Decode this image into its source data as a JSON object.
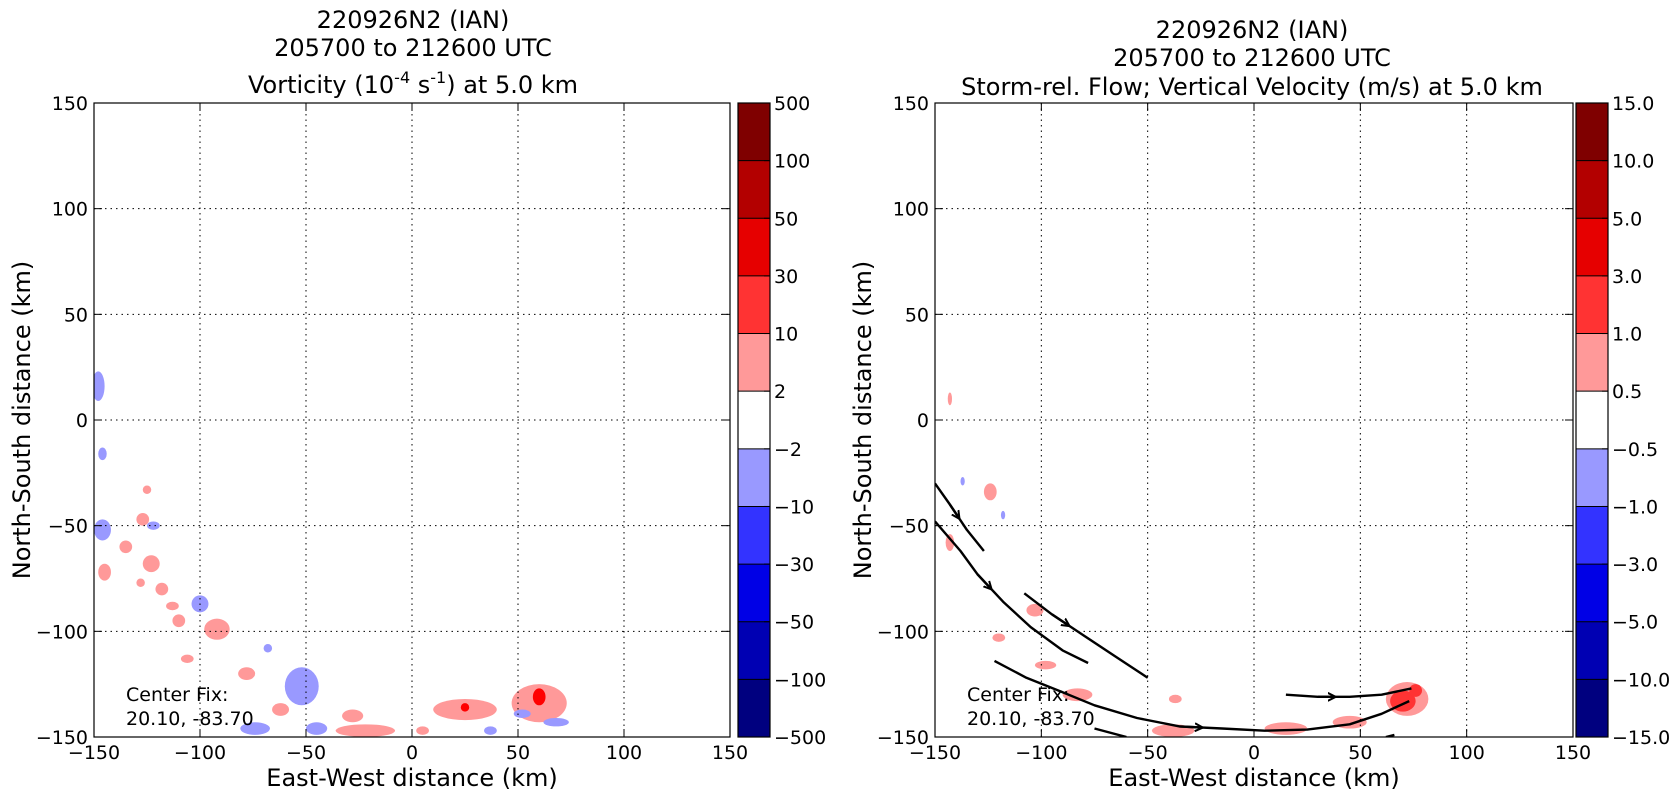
{
  "figure": {
    "panels": [
      {
        "title_lines": [
          "220926N2 (IAN)",
          "205700 to 212600 UTC"
        ],
        "title_main": "Vorticity (10",
        "title_exp": "-4",
        "title_mid": " s",
        "title_exp2": "-1",
        "title_end": ") at 5.0 km",
        "center_fix_label": "Center Fix:",
        "center_fix_value": "20.10, -83.70"
      },
      {
        "title_lines": [
          "220926N2 (IAN)",
          "205700 to 212600 UTC"
        ],
        "title_main": "Storm-rel. Flow; Vertical Velocity (m/s) at 5.0 km",
        "center_fix_label": "Center Fix:",
        "center_fix_value": "20.10, -83.70"
      }
    ]
  },
  "chart_data": [
    {
      "type": "heatmap",
      "title": "220926N2 (IAN) 205700 to 212600 UTC Vorticity (10^-4 s^-1) at 5.0 km",
      "xlabel": "East-West distance (km)",
      "ylabel": "North-South distance (km)",
      "xlim": [
        -150,
        150
      ],
      "ylim": [
        -150,
        150
      ],
      "xticks": [
        -150,
        -100,
        -50,
        0,
        50,
        100,
        150
      ],
      "yticks": [
        -150,
        -100,
        -50,
        0,
        50,
        100,
        150
      ],
      "xtick_labels": [
        "−150",
        "−100",
        "−50",
        "0",
        "50",
        "100",
        "150"
      ],
      "ytick_labels": [
        "−150",
        "−100",
        "−50",
        "0",
        "50",
        "100",
        "150"
      ],
      "grid": true,
      "colorbar": {
        "labels": [
          "500",
          "100",
          "50",
          "30",
          "10",
          "2",
          "−2",
          "−10",
          "−30",
          "−50",
          "−100",
          "−500"
        ],
        "colors": [
          "#7f0000",
          "#b30000",
          "#e60000",
          "#ff3333",
          "#ff9999",
          "#ffffff",
          "#9999ff",
          "#3333ff",
          "#0000e6",
          "#0000b3",
          "#00007f"
        ]
      },
      "patches": [
        {
          "level": "#9999ff",
          "x": -148,
          "y": 16,
          "rx": 3,
          "ry": 7
        },
        {
          "level": "#9999ff",
          "x": -146,
          "y": -16,
          "rx": 2,
          "ry": 3
        },
        {
          "level": "#9999ff",
          "x": -146,
          "y": -52,
          "rx": 4,
          "ry": 5
        },
        {
          "level": "#ff9999",
          "x": -145,
          "y": -72,
          "rx": 3,
          "ry": 4
        },
        {
          "level": "#ff9999",
          "x": -135,
          "y": -60,
          "rx": 3,
          "ry": 3
        },
        {
          "level": "#ff9999",
          "x": -127,
          "y": -47,
          "rx": 3,
          "ry": 3
        },
        {
          "level": "#ff9999",
          "x": -125,
          "y": -33,
          "rx": 2,
          "ry": 2
        },
        {
          "level": "#9999ff",
          "x": -122,
          "y": -50,
          "rx": 3,
          "ry": 2
        },
        {
          "level": "#ff9999",
          "x": -123,
          "y": -68,
          "rx": 4,
          "ry": 4
        },
        {
          "level": "#ff9999",
          "x": -118,
          "y": -80,
          "rx": 3,
          "ry": 3
        },
        {
          "level": "#ff9999",
          "x": -128,
          "y": -77,
          "rx": 2,
          "ry": 2
        },
        {
          "level": "#ff9999",
          "x": -113,
          "y": -88,
          "rx": 3,
          "ry": 2
        },
        {
          "level": "#ff9999",
          "x": -110,
          "y": -95,
          "rx": 3,
          "ry": 3
        },
        {
          "level": "#9999ff",
          "x": -100,
          "y": -87,
          "rx": 4,
          "ry": 4
        },
        {
          "level": "#ff9999",
          "x": -92,
          "y": -99,
          "rx": 6,
          "ry": 5
        },
        {
          "level": "#ff9999",
          "x": -106,
          "y": -113,
          "rx": 3,
          "ry": 2
        },
        {
          "level": "#ff9999",
          "x": -78,
          "y": -120,
          "rx": 4,
          "ry": 3
        },
        {
          "level": "#9999ff",
          "x": -68,
          "y": -108,
          "rx": 2,
          "ry": 2
        },
        {
          "level": "#9999ff",
          "x": -52,
          "y": -126,
          "rx": 8,
          "ry": 9
        },
        {
          "level": "#9999ff",
          "x": -45,
          "y": -146,
          "rx": 5,
          "ry": 3
        },
        {
          "level": "#ff9999",
          "x": -62,
          "y": -137,
          "rx": 4,
          "ry": 3
        },
        {
          "level": "#ff9999",
          "x": -28,
          "y": -140,
          "rx": 5,
          "ry": 3
        },
        {
          "level": "#ff9999",
          "x": -22,
          "y": -147,
          "rx": 14,
          "ry": 3
        },
        {
          "level": "#9999ff",
          "x": -74,
          "y": -146,
          "rx": 7,
          "ry": 3
        },
        {
          "level": "#ff9999",
          "x": 5,
          "y": -147,
          "rx": 3,
          "ry": 2
        },
        {
          "level": "#ff9999",
          "x": 25,
          "y": -137,
          "rx": 15,
          "ry": 5
        },
        {
          "level": "#ff0000",
          "x": 25,
          "y": -136,
          "rx": 2,
          "ry": 2
        },
        {
          "level": "#ff9999",
          "x": 60,
          "y": -134,
          "rx": 13,
          "ry": 9
        },
        {
          "level": "#ff0000",
          "x": 60,
          "y": -131,
          "rx": 3,
          "ry": 4
        },
        {
          "level": "#9999ff",
          "x": 52,
          "y": -139,
          "rx": 4,
          "ry": 2
        },
        {
          "level": "#9999ff",
          "x": 68,
          "y": -143,
          "rx": 6,
          "ry": 2
        },
        {
          "level": "#9999ff",
          "x": 37,
          "y": -147,
          "rx": 3,
          "ry": 2
        }
      ]
    },
    {
      "type": "heatmap",
      "title": "220926N2 (IAN) 205700 to 212600 UTC Storm-rel. Flow; Vertical Velocity (m/s) at 5.0 km",
      "xlabel": "East-West distance (km)",
      "ylabel": "North-South distance (km)",
      "xlim": [
        -150,
        150
      ],
      "ylim": [
        -150,
        150
      ],
      "xticks": [
        -150,
        -100,
        -50,
        0,
        50,
        100,
        150
      ],
      "yticks": [
        -150,
        -100,
        -50,
        0,
        50,
        100,
        150
      ],
      "xtick_labels": [
        "−150",
        "−100",
        "−50",
        "0",
        "50",
        "100",
        "150"
      ],
      "ytick_labels": [
        "−150",
        "−100",
        "−50",
        "0",
        "50",
        "100",
        "150"
      ],
      "grid": true,
      "colorbar": {
        "labels": [
          "15.0",
          "10.0",
          "5.0",
          "3.0",
          "1.0",
          "0.5",
          "−0.5",
          "−1.0",
          "−3.0",
          "−5.0",
          "−10.0",
          "−15.0"
        ],
        "colors": [
          "#7f0000",
          "#b30000",
          "#e60000",
          "#ff3333",
          "#ff9999",
          "#ffffff",
          "#9999ff",
          "#3333ff",
          "#0000e6",
          "#0000b3",
          "#00007f"
        ]
      },
      "patches": [
        {
          "level": "#ff9999",
          "x": -143,
          "y": 10,
          "rx": 1,
          "ry": 3
        },
        {
          "level": "#9999ff",
          "x": -137,
          "y": -29,
          "rx": 1,
          "ry": 2
        },
        {
          "level": "#ff9999",
          "x": -124,
          "y": -34,
          "rx": 3,
          "ry": 4
        },
        {
          "level": "#9999ff",
          "x": -118,
          "y": -45,
          "rx": 1,
          "ry": 2
        },
        {
          "level": "#ff9999",
          "x": -143,
          "y": -58,
          "rx": 2,
          "ry": 4
        },
        {
          "level": "#ff9999",
          "x": -103,
          "y": -90,
          "rx": 4,
          "ry": 3
        },
        {
          "level": "#ff9999",
          "x": -120,
          "y": -103,
          "rx": 3,
          "ry": 2
        },
        {
          "level": "#ff9999",
          "x": -98,
          "y": -116,
          "rx": 5,
          "ry": 2
        },
        {
          "level": "#ff9999",
          "x": -83,
          "y": -130,
          "rx": 7,
          "ry": 3
        },
        {
          "level": "#ff9999",
          "x": -37,
          "y": -132,
          "rx": 3,
          "ry": 2
        },
        {
          "level": "#ff9999",
          "x": -38,
          "y": -147,
          "rx": 10,
          "ry": 3
        },
        {
          "level": "#ff9999",
          "x": 15,
          "y": -146,
          "rx": 10,
          "ry": 3
        },
        {
          "level": "#ff9999",
          "x": 45,
          "y": -143,
          "rx": 8,
          "ry": 3
        },
        {
          "level": "#ff9999",
          "x": 72,
          "y": -132,
          "rx": 10,
          "ry": 8
        },
        {
          "level": "#ff3333",
          "x": 70,
          "y": -133,
          "rx": 6,
          "ry": 5
        },
        {
          "level": "#ff3333",
          "x": 76,
          "y": -128,
          "rx": 3,
          "ry": 3
        }
      ],
      "streamlines": [
        [
          [
            -150,
            -30
          ],
          [
            -143,
            -40
          ],
          [
            -135,
            -52
          ],
          [
            -127,
            -62
          ]
        ],
        [
          [
            -150,
            -48
          ],
          [
            -138,
            -62
          ],
          [
            -130,
            -73
          ],
          [
            -118,
            -86
          ],
          [
            -105,
            -98
          ],
          [
            -90,
            -109
          ],
          [
            -78,
            -115
          ]
        ],
        [
          [
            -108,
            -82
          ],
          [
            -95,
            -92
          ],
          [
            -80,
            -102
          ],
          [
            -65,
            -112
          ],
          [
            -50,
            -122
          ]
        ],
        [
          [
            -122,
            -114
          ],
          [
            -107,
            -122
          ],
          [
            -92,
            -128
          ],
          [
            -75,
            -135
          ],
          [
            -55,
            -141
          ],
          [
            -35,
            -145
          ],
          [
            -15,
            -146
          ],
          [
            5,
            -147
          ],
          [
            25,
            -146.5
          ],
          [
            45,
            -144
          ],
          [
            60,
            -139
          ],
          [
            73,
            -133
          ]
        ],
        [
          [
            15,
            -130
          ],
          [
            30,
            -131
          ],
          [
            45,
            -131
          ],
          [
            60,
            -130
          ],
          [
            74,
            -127
          ]
        ],
        [
          [
            -75,
            -146
          ],
          [
            -60,
            -150
          ]
        ],
        [
          [
            62,
            -150
          ],
          [
            66,
            -149
          ]
        ]
      ]
    }
  ]
}
